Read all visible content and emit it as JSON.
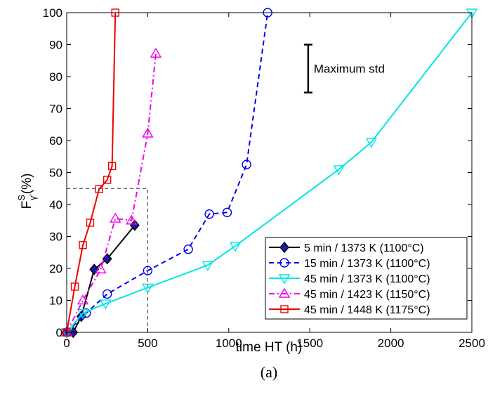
{
  "chart_data": {
    "type": "line",
    "xlabel": "time HT (h)",
    "ylabel_main": "F",
    "ylabel_sup": "S",
    "ylabel_sub": "γ'",
    "ylabel_rest": "(%)",
    "subcaption": "(a)",
    "xlim": [
      0,
      2500
    ],
    "ylim": [
      0,
      100
    ],
    "xticks": [
      0,
      500,
      1000,
      1500,
      2000,
      2500
    ],
    "yticks": [
      0,
      10,
      20,
      30,
      40,
      50,
      60,
      70,
      80,
      90,
      100
    ],
    "grid": false,
    "legend_position": "lower-right",
    "annotation": {
      "label": "Maximum std",
      "x": 1490,
      "y_low": 75,
      "y_high": 90
    },
    "reference_box": {
      "x_max": 500,
      "y_max": 45
    },
    "series": [
      {
        "name": "5 min / 1373 K (1100°C)",
        "color": "#000000",
        "linestyle": "solid",
        "marker": "diamond",
        "marker_fill": "#1a1aa8",
        "x": [
          0,
          40,
          90,
          170,
          250,
          420
        ],
        "y": [
          0,
          0,
          5,
          19.7,
          23,
          33.5
        ]
      },
      {
        "name": "15 min / 1373 K (1100°C)",
        "color": "#0000ee",
        "linestyle": "dashed",
        "marker": "circle",
        "marker_fill": "none",
        "x": [
          0,
          120,
          250,
          500,
          750,
          880,
          990,
          1110,
          1240
        ],
        "y": [
          0,
          6,
          12,
          19.3,
          26,
          37,
          37.5,
          52.5,
          100
        ]
      },
      {
        "name": "45 min / 1373 K (1100°C)",
        "color": "#00e5e5",
        "linestyle": "solid",
        "marker": "triangle-down",
        "marker_fill": "none",
        "x": [
          0,
          100,
          240,
          500,
          870,
          1040,
          1680,
          1880,
          2500
        ],
        "y": [
          0,
          6,
          9,
          14,
          21,
          27,
          51,
          59.5,
          100
        ]
      },
      {
        "name": "45 min / 1423 K (1150°C)",
        "color": "#ee00ee",
        "linestyle": "dashdot",
        "marker": "triangle-up",
        "marker_fill": "none",
        "x": [
          0,
          100,
          210,
          300,
          400,
          500,
          550
        ],
        "y": [
          0,
          10,
          19.7,
          35.6,
          35,
          62.2,
          87.2
        ]
      },
      {
        "name": "45 min / 1448 K (1175°C)",
        "color": "#ee0000",
        "linestyle": "solid",
        "marker": "square",
        "marker_fill": "none",
        "x": [
          0,
          50,
          100,
          145,
          200,
          250,
          280,
          300
        ],
        "y": [
          0,
          14.3,
          27.3,
          34.3,
          44.8,
          47.7,
          52,
          100
        ]
      }
    ]
  }
}
